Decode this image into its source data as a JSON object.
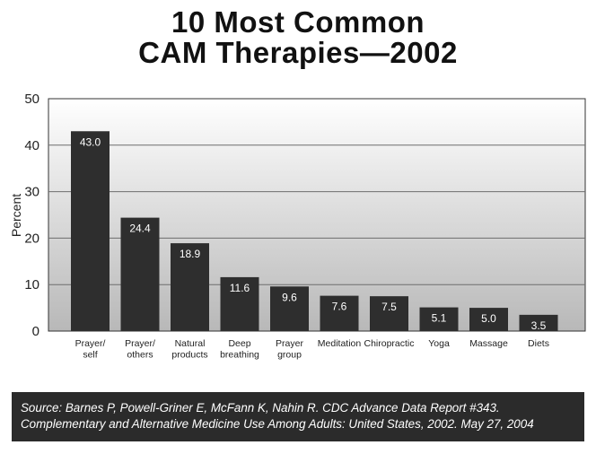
{
  "chart_data": {
    "type": "bar",
    "title_lines": [
      "10 Most Common",
      "CAM Therapies—2002"
    ],
    "ylabel": "Percent",
    "xlabel": "",
    "ylim": [
      0,
      50
    ],
    "yticks": [
      0,
      10,
      20,
      30,
      40,
      50
    ],
    "grid": true,
    "categories": [
      [
        "Prayer/",
        "self"
      ],
      [
        "Prayer/",
        "others"
      ],
      [
        "Natural",
        "products"
      ],
      [
        "Deep",
        "breathing"
      ],
      [
        "Prayer",
        "group"
      ],
      [
        "Meditation"
      ],
      [
        "Chiropractic"
      ],
      [
        "Yoga"
      ],
      [
        "Massage"
      ],
      [
        "Diets"
      ]
    ],
    "values": [
      43.0,
      24.4,
      18.9,
      11.6,
      9.6,
      7.6,
      7.5,
      5.1,
      5.0,
      3.5
    ],
    "value_labels": [
      "43.0",
      "24.4",
      "18.9",
      "11.6",
      "9.6",
      "7.6",
      "7.5",
      "5.1",
      "5.0",
      "3.5"
    ],
    "colors": {
      "bar": "#2e2e2e",
      "plot_top": "#ffffff",
      "plot_bottom": "#b8b8b8",
      "grid": "#6e6e6e",
      "value_label": "#ffffff"
    }
  },
  "source": {
    "line1": "Source: Barnes P, Powell-Griner E, McFann K, Nahin R. CDC Advance Data Report #343.",
    "line2": "Complementary and Alternative Medicine Use Among Adults: United States, 2002. May 27, 2004"
  }
}
